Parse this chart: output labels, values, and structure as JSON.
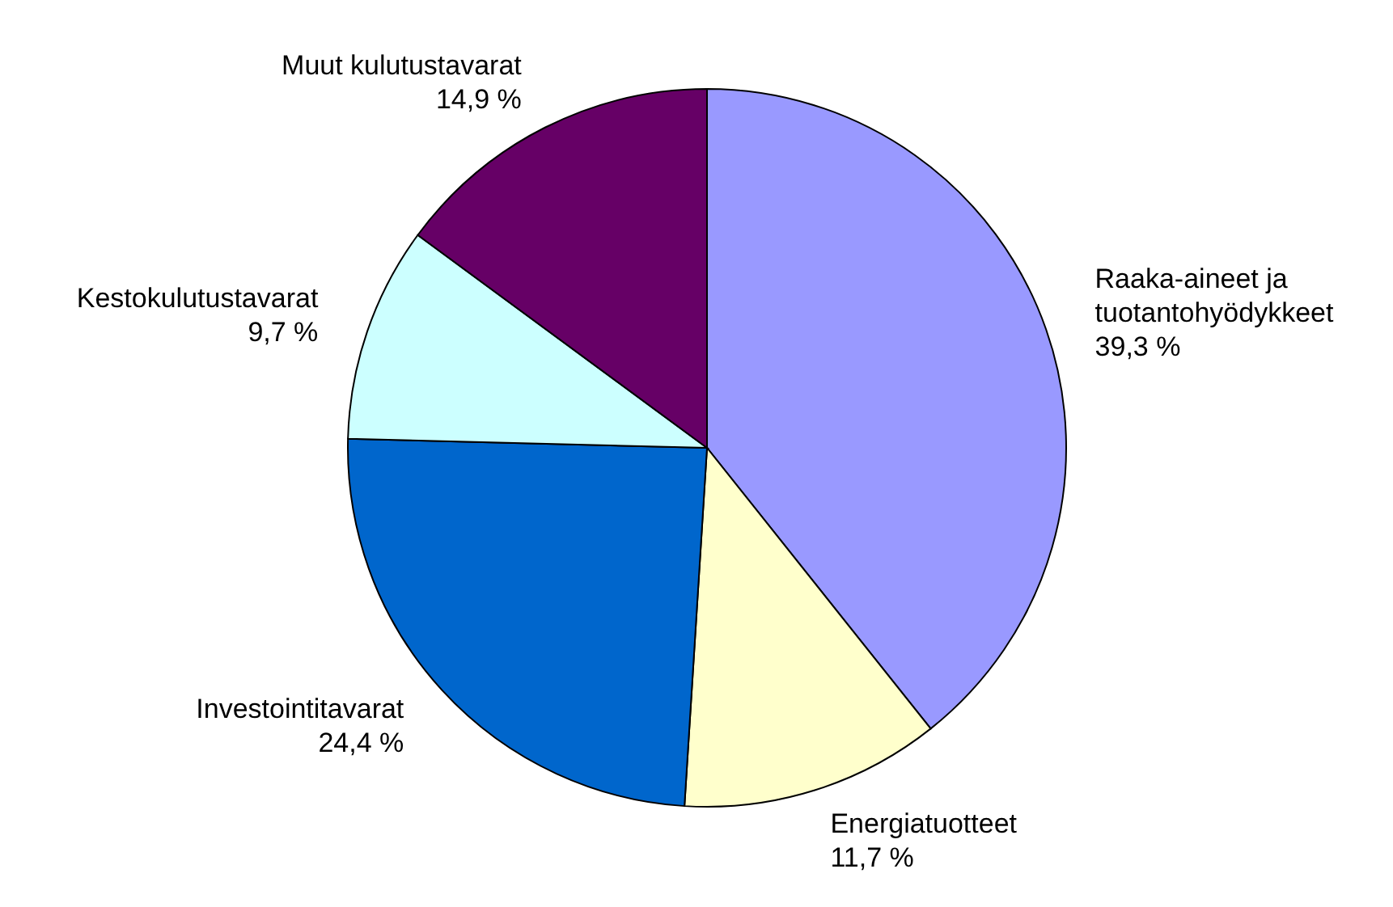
{
  "chart_data": {
    "type": "pie",
    "categories": [
      "Raaka-aineet ja tuotantohyödykkeet",
      "Energiatuotteet",
      "Investointitavarat",
      "Kestokulutustavarat",
      "Muut kulutustavarat"
    ],
    "values": [
      39.3,
      11.7,
      24.4,
      9.7,
      14.9
    ],
    "value_labels": [
      "39,3 %",
      "11,7 %",
      "24,4 %",
      "9,7 %",
      "14,9 %"
    ],
    "colors": [
      "#9999ff",
      "#ffffcc",
      "#0066cc",
      "#ccffff",
      "#660066"
    ]
  }
}
